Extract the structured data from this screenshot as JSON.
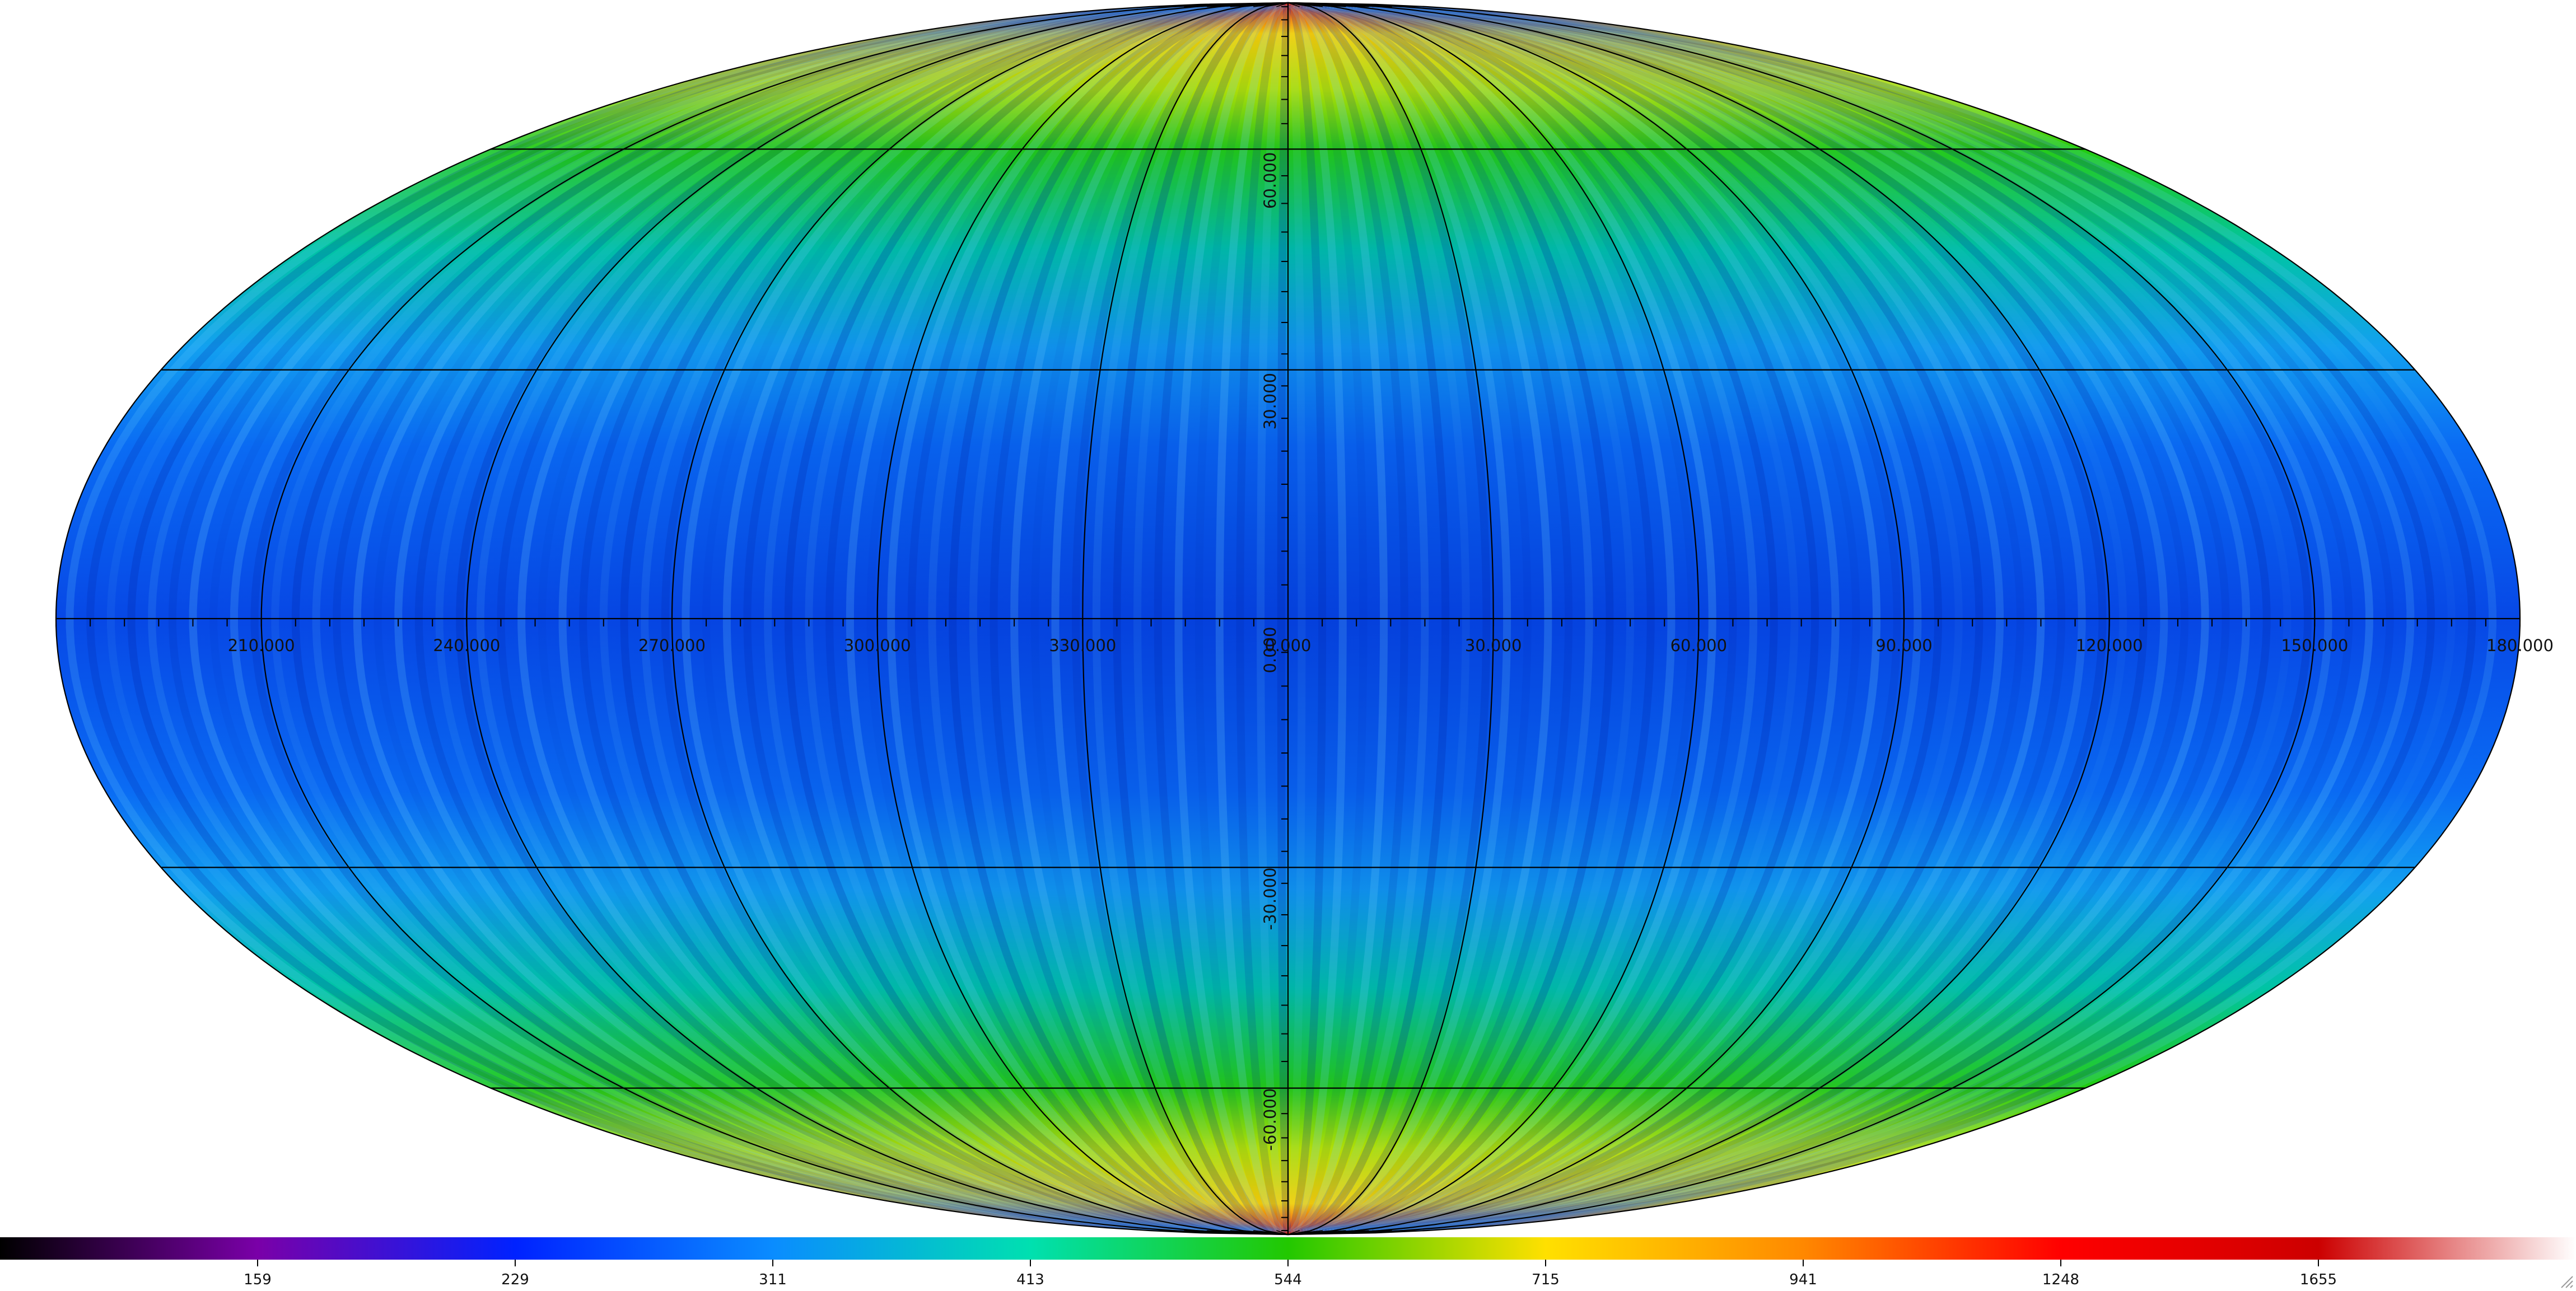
{
  "map": {
    "projection": "mollweide",
    "longitude_labels": [
      "180.000",
      "150.000",
      "120.000",
      "90.000",
      "60.000",
      "30.000",
      "0.000",
      "330.000",
      "300.000",
      "270.000",
      "240.000",
      "210.000"
    ],
    "longitude_values": [
      180,
      150,
      120,
      90,
      60,
      30,
      0,
      -30,
      -60,
      -90,
      -120,
      -150
    ],
    "latitude_labels": [
      "60.000",
      "30.000",
      "0.000",
      "-30.000",
      "-60.000"
    ],
    "latitude_values": [
      60,
      30,
      0,
      -30,
      -60
    ],
    "grid_color": "#000000"
  },
  "colorbar": {
    "tick_labels": [
      "159",
      "229",
      "311",
      "413",
      "544",
      "715",
      "941",
      "1248",
      "1655"
    ],
    "colors": [
      "#000000",
      "#7a00a8",
      "#0022ff",
      "#0a8cff",
      "#00e0b0",
      "#22c800",
      "#ffe000",
      "#ff8800",
      "#ff0000",
      "#cc0000",
      "#ffffff"
    ]
  },
  "icons": {
    "resize": "resize-grip-icon"
  }
}
